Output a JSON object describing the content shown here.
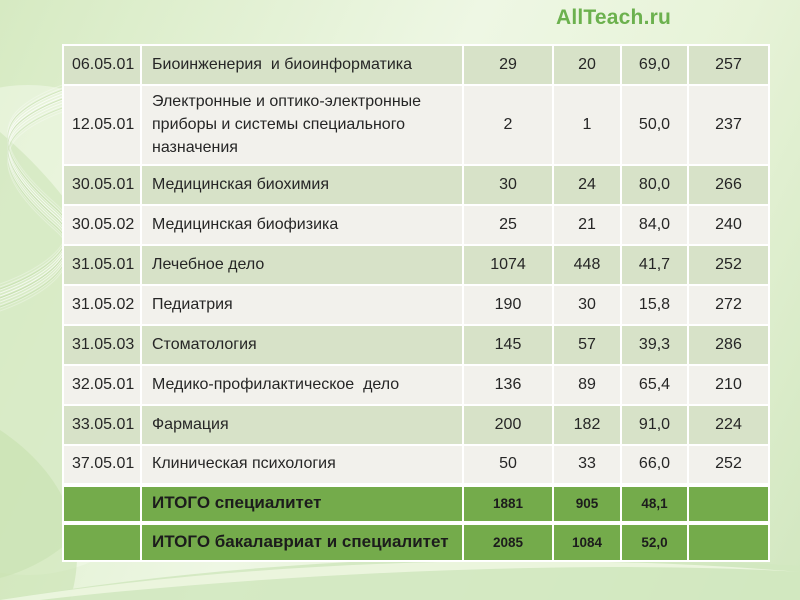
{
  "logo": {
    "text": "AllTeach.ru"
  },
  "table": {
    "rows": [
      {
        "code": "06.05.01",
        "name": "Биоинженерия  и биоинформатика",
        "values": [
          "29",
          "20",
          "69,0",
          "257"
        ]
      },
      {
        "code": "12.05.01",
        "name": "Электронные и оптико-электронные приборы и системы специального назначения",
        "values": [
          "2",
          "1",
          "50,0",
          "237"
        ]
      },
      {
        "code": "30.05.01",
        "name": "Медицинская биохимия",
        "values": [
          "30",
          "24",
          "80,0",
          "266"
        ]
      },
      {
        "code": "30.05.02",
        "name": "Медицинская биофизика",
        "values": [
          "25",
          "21",
          "84,0",
          "240"
        ]
      },
      {
        "code": "31.05.01",
        "name": "Лечебное дело",
        "values": [
          "1074",
          "448",
          "41,7",
          "252"
        ]
      },
      {
        "code": "31.05.02",
        "name": "Педиатрия",
        "values": [
          "190",
          "30",
          "15,8",
          "272"
        ]
      },
      {
        "code": "31.05.03",
        "name": "Стоматология",
        "values": [
          "145",
          "57",
          "39,3",
          "286"
        ]
      },
      {
        "code": "32.05.01",
        "name": "Медико-профилактическое  дело",
        "values": [
          "136",
          "89",
          "65,4",
          "210"
        ]
      },
      {
        "code": "33.05.01",
        "name": "Фармация",
        "values": [
          "200",
          "182",
          "91,0",
          "224"
        ]
      },
      {
        "code": "37.05.01",
        "name": "Клиническая психология",
        "values": [
          "50",
          "33",
          "66,0",
          "252"
        ]
      }
    ],
    "totals": [
      {
        "label": "ИТОГО специалитет",
        "values": [
          "1881",
          "905",
          "48,1",
          ""
        ]
      },
      {
        "label": "ИТОГО бакалавриат и специалитет",
        "values": [
          "2085",
          "1084",
          "52,0",
          ""
        ]
      }
    ]
  },
  "colors": {
    "accent": "#6cb14e",
    "row_green": "#d7e2c8",
    "row_white": "#f2f1ec",
    "total_green": "#74ab4b",
    "text": "#262626"
  }
}
